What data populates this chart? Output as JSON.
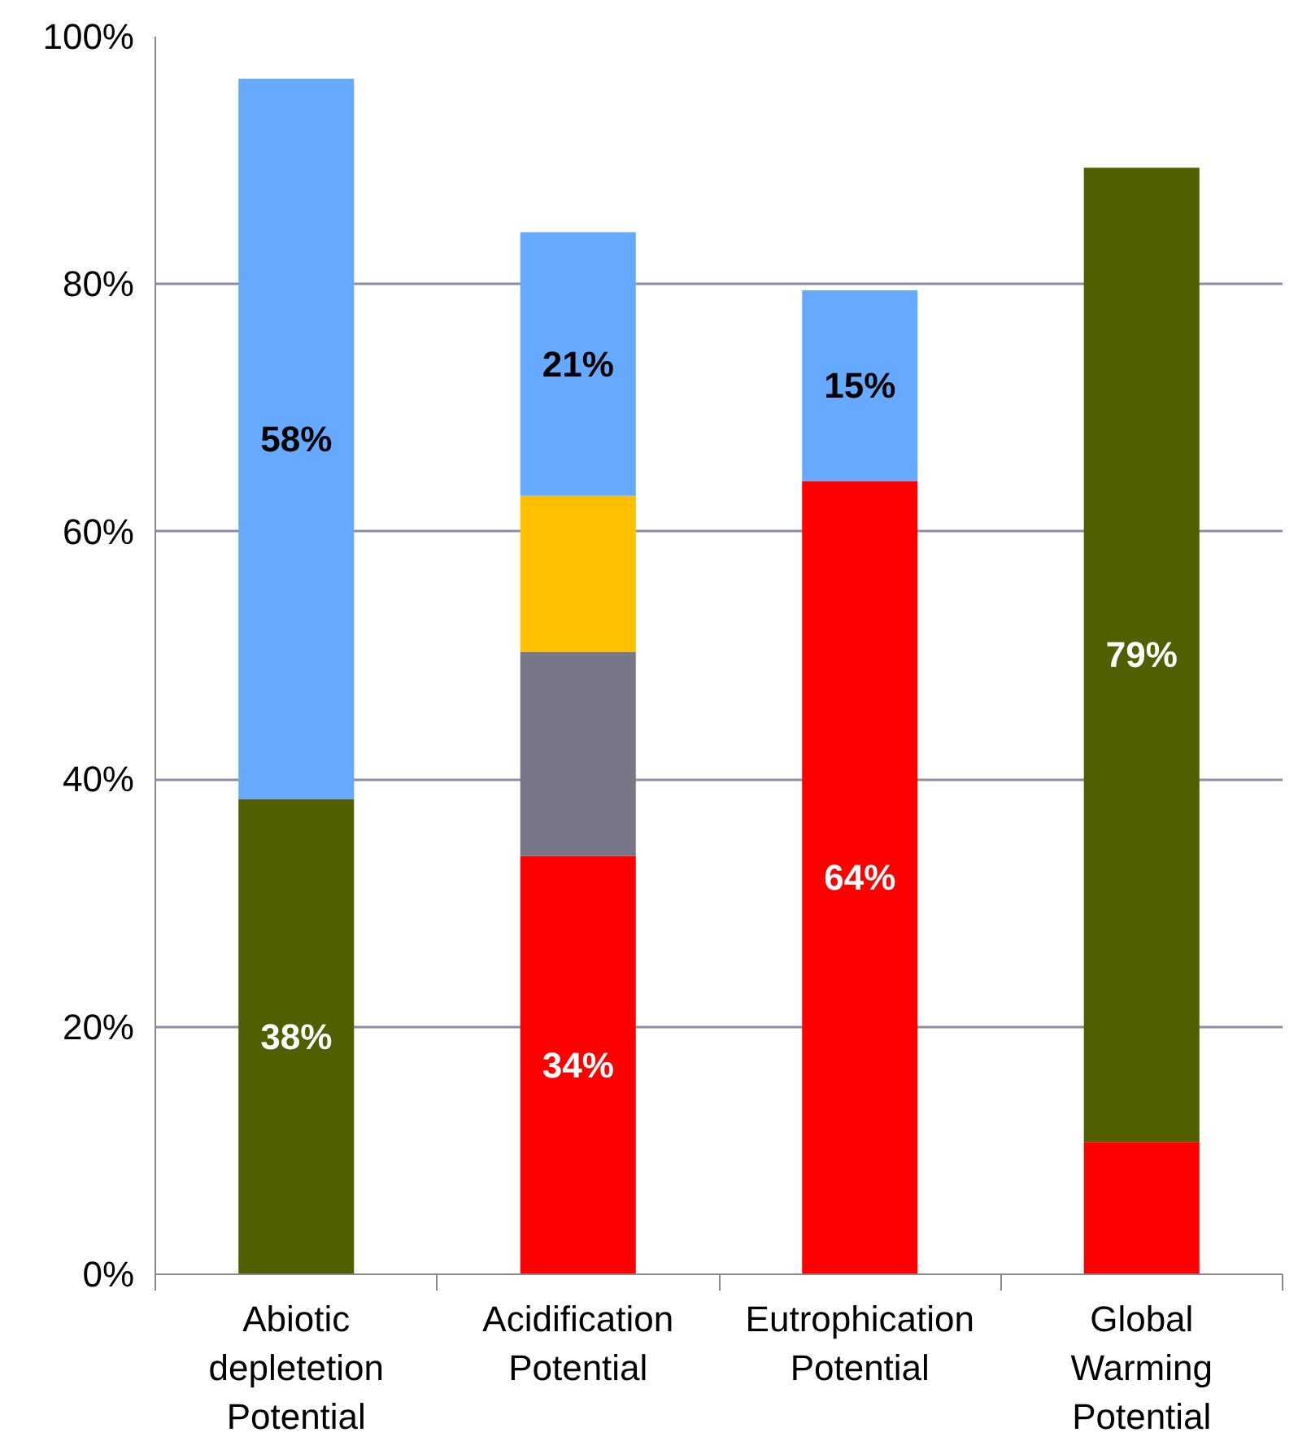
{
  "chart_data": {
    "type": "bar",
    "stacked": true,
    "categories": [
      "Abiotic\ndepletetion\nPotential",
      "Acidification\nPotential",
      "Eutrophication\nPotential",
      "Global\nWarming\nPotential"
    ],
    "series": [
      {
        "color": "#ff0000",
        "values": [
          null,
          33.8,
          64.1,
          10.7
        ],
        "value_labels": [
          null,
          "34%",
          "64%",
          null
        ]
      },
      {
        "color": "#506000",
        "values": [
          38.4,
          null,
          null,
          78.7
        ],
        "value_labels": [
          "38%",
          null,
          null,
          "79%"
        ]
      },
      {
        "color": "#777788",
        "values": [
          null,
          16.5,
          null,
          null
        ]
      },
      {
        "color": "#ffc000",
        "values": [
          null,
          12.6,
          null,
          null
        ]
      },
      {
        "color": "#66aaff",
        "values": [
          58.2,
          21.3,
          15.4,
          null
        ],
        "value_labels": [
          "58%",
          "21%",
          "15%",
          null
        ]
      }
    ],
    "ylim": [
      0,
      100
    ],
    "yticks": [
      {
        "value": 0,
        "label": "0%"
      },
      {
        "value": 20,
        "label": "20%"
      },
      {
        "value": 40,
        "label": "40%"
      },
      {
        "value": 60,
        "label": "60%"
      },
      {
        "value": 80,
        "label": "80%"
      },
      {
        "value": 100,
        "label": "100%"
      }
    ],
    "grid": "y"
  }
}
